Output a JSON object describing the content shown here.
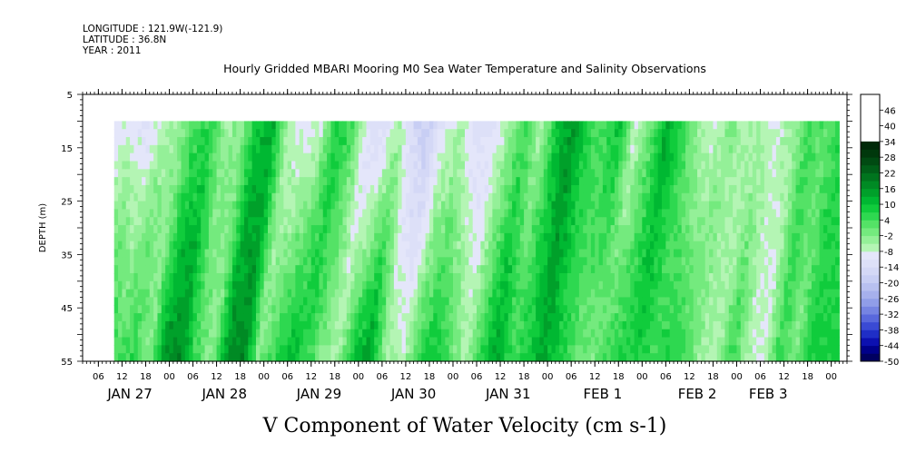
{
  "header": {
    "longitude_text": "LONGITUDE : 121.9W(-121.9)",
    "latitude_text": "LATITUDE : 36.8N",
    "year_text": "YEAR : 2011"
  },
  "chart_data": {
    "type": "heatmap",
    "title": "Hourly Gridded MBARI Mooring M0 Sea Water Temperature and Salinity Observations",
    "subtitle": "V Component of Water Velocity (cm s-1)",
    "ylabel": "DEPTH (m)",
    "xlabel": "",
    "x_axis": {
      "unit": "hours",
      "range_start": "JAN 27 02:00",
      "range_end": "FEB 3 04:00",
      "data_start": "JAN 27 10:00",
      "data_end": "FEB 3 02:00",
      "hour_tick_labels": [
        "06",
        "12",
        "18",
        "00",
        "06",
        "12",
        "18",
        "00",
        "06",
        "12",
        "18",
        "00",
        "06",
        "12",
        "18",
        "00",
        "06",
        "12",
        "18",
        "00",
        "06",
        "12",
        "18",
        "00",
        "06",
        "12",
        "18",
        "00",
        "06",
        "12",
        "18",
        "00"
      ],
      "hour_tick_offsets": [
        4,
        10,
        16,
        22,
        28,
        34,
        40,
        46,
        52,
        58,
        64,
        70,
        76,
        82,
        88,
        94,
        100,
        106,
        112,
        118,
        124,
        130,
        136,
        142,
        148,
        154,
        160,
        166,
        172,
        178,
        184,
        190
      ],
      "day_labels": [
        {
          "text": "JAN 27",
          "at_hours": 12
        },
        {
          "text": "JAN 28",
          "at_hours": 36
        },
        {
          "text": "JAN 29",
          "at_hours": 60
        },
        {
          "text": "JAN 30",
          "at_hours": 84
        },
        {
          "text": "JAN 31",
          "at_hours": 108
        },
        {
          "text": "FEB  1",
          "at_hours": 132
        },
        {
          "text": "FEB  2",
          "at_hours": 156
        },
        {
          "text": "FEB 3",
          "at_hours": 174
        }
      ]
    },
    "y_axis": {
      "range": [
        5,
        55
      ],
      "inverted": true,
      "tick_labels": [
        "5",
        "15",
        "25",
        "35",
        "45",
        "55"
      ],
      "tick_values": [
        5,
        15,
        25,
        35,
        45,
        55
      ],
      "data_top": 10,
      "data_bottom": 55
    },
    "x_range_hours": [
      0,
      194
    ],
    "data_hours": [
      8,
      192
    ],
    "colorbar": {
      "labels": [
        "46",
        "40",
        "34",
        "28",
        "22",
        "16",
        "10",
        "4",
        "-2",
        "-8",
        "-14",
        "-20",
        "-26",
        "-32",
        "-38",
        "-44",
        "-50"
      ],
      "values": [
        46,
        40,
        34,
        28,
        22,
        16,
        10,
        4,
        -2,
        -8,
        -14,
        -20,
        -26,
        -32,
        -38,
        -44,
        -50
      ],
      "range": [
        -50,
        52
      ],
      "step": 3,
      "colors_low_to_high": [
        "#000060",
        "#00008a",
        "#0c10b0",
        "#1f2ec6",
        "#3a4ad4",
        "#5968dc",
        "#7684e2",
        "#909de8",
        "#a6b0ec",
        "#b8c0f0",
        "#c8cef4",
        "#d4d8f6",
        "#dde0f8",
        "#e4e6fa",
        "#b4f5b4",
        "#94f098",
        "#74ea7e",
        "#54e266",
        "#2ed850",
        "#10cc3c",
        "#00b832",
        "#00a02a",
        "#008a24",
        "#00741e",
        "#005e18",
        "#004a12",
        "#00380c",
        "#002a08"
      ]
    },
    "grid": false,
    "legend": "colorbar-right",
    "field_description": {
      "value_range_observed": [
        -20,
        22
      ],
      "columns": [
        {
          "hour": 8,
          "top": -10,
          "bottom": -4
        },
        {
          "hour": 12,
          "top": -8,
          "bottom": 10
        },
        {
          "hour": 16,
          "top": -12,
          "bottom": 4
        },
        {
          "hour": 20,
          "top": -6,
          "bottom": 6
        },
        {
          "hour": 24,
          "top": -4,
          "bottom": -2
        },
        {
          "hour": 28,
          "top": 4,
          "bottom": 16
        },
        {
          "hour": 32,
          "top": 6,
          "bottom": 18
        },
        {
          "hour": 36,
          "top": -4,
          "bottom": 4
        },
        {
          "hour": 40,
          "top": -2,
          "bottom": -4
        },
        {
          "hour": 44,
          "top": 10,
          "bottom": 16
        },
        {
          "hour": 48,
          "top": 12,
          "bottom": 18
        },
        {
          "hour": 52,
          "top": -6,
          "bottom": -2
        },
        {
          "hour": 56,
          "top": -10,
          "bottom": 6
        },
        {
          "hour": 60,
          "top": -8,
          "bottom": 12
        },
        {
          "hour": 64,
          "top": 8,
          "bottom": 6
        },
        {
          "hour": 68,
          "top": 4,
          "bottom": -2
        },
        {
          "hour": 72,
          "top": -12,
          "bottom": -4
        },
        {
          "hour": 76,
          "top": -14,
          "bottom": 10
        },
        {
          "hour": 80,
          "top": -6,
          "bottom": 16
        },
        {
          "hour": 84,
          "top": -16,
          "bottom": -2
        },
        {
          "hour": 88,
          "top": -18,
          "bottom": -8
        },
        {
          "hour": 92,
          "top": -8,
          "bottom": 4
        },
        {
          "hour": 96,
          "top": -6,
          "bottom": 10
        },
        {
          "hour": 100,
          "top": -14,
          "bottom": 4
        },
        {
          "hour": 104,
          "top": -12,
          "bottom": -6
        },
        {
          "hour": 108,
          "top": -4,
          "bottom": 6
        },
        {
          "hour": 112,
          "top": 4,
          "bottom": 14
        },
        {
          "hour": 116,
          "top": -6,
          "bottom": 6
        },
        {
          "hour": 120,
          "top": 10,
          "bottom": 6
        },
        {
          "hour": 124,
          "top": 16,
          "bottom": 14
        },
        {
          "hour": 128,
          "top": 6,
          "bottom": 8
        },
        {
          "hour": 132,
          "top": 4,
          "bottom": 2
        },
        {
          "hour": 136,
          "top": 10,
          "bottom": -2
        },
        {
          "hour": 140,
          "top": -8,
          "bottom": 4
        },
        {
          "hour": 144,
          "top": 2,
          "bottom": 6
        },
        {
          "hour": 148,
          "top": 14,
          "bottom": 8
        },
        {
          "hour": 152,
          "top": 6,
          "bottom": 4
        },
        {
          "hour": 156,
          "top": -4,
          "bottom": 8
        },
        {
          "hour": 160,
          "top": -8,
          "bottom": 4
        },
        {
          "hour": 164,
          "top": -2,
          "bottom": -4
        },
        {
          "hour": 168,
          "top": -6,
          "bottom": -6
        },
        {
          "hour": 172,
          "top": -6,
          "bottom": 6
        },
        {
          "hour": 176,
          "top": -8,
          "bottom": -6
        },
        {
          "hour": 180,
          "top": -4,
          "bottom": -10
        },
        {
          "hour": 184,
          "top": 4,
          "bottom": 6
        },
        {
          "hour": 188,
          "top": 2,
          "bottom": -2
        },
        {
          "hour": 192,
          "top": 6,
          "bottom": 8
        }
      ]
    }
  }
}
